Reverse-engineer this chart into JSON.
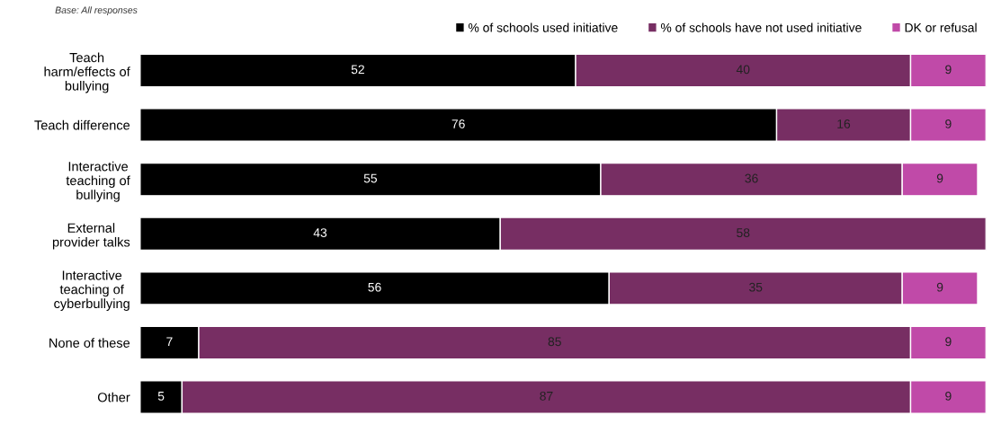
{
  "chart_data": {
    "type": "bar",
    "orientation": "horizontal",
    "stacked": true,
    "categories": [
      "Teach\nharm/effects of\nbullying",
      "Teach difference",
      "Interactive\nteaching of\nbullying",
      "External\nprovider talks",
      "Interactive\nteaching of\ncyberbullying",
      "None of these",
      "Other"
    ],
    "series": [
      {
        "name": "% of schools used initiative",
        "color": "#000000",
        "values": [
          52,
          76,
          55,
          43,
          56,
          7,
          5
        ]
      },
      {
        "name": "% of schools have not used initiative",
        "color": "#772e63",
        "values": [
          40,
          16,
          36,
          58,
          35,
          85,
          87
        ]
      },
      {
        "name": "DK or refusal",
        "color": "#c04aa8",
        "values": [
          9,
          9,
          9,
          null,
          9,
          9,
          9
        ]
      }
    ],
    "xlim": [
      0,
      101
    ],
    "data_labels": true,
    "legend": "top right",
    "tick_labels": "y",
    "grid": false,
    "annotations": [
      "Base: All responses"
    ]
  }
}
